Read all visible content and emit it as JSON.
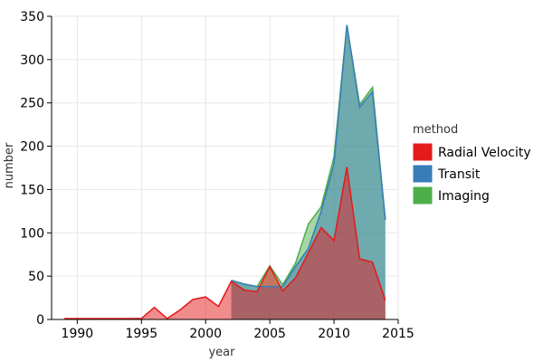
{
  "chart_data": {
    "type": "area",
    "title": "",
    "xlabel": "year",
    "ylabel": "number",
    "xlim": [
      1988,
      2015
    ],
    "ylim": [
      0,
      350
    ],
    "xticks": [
      1990,
      1995,
      2000,
      2005,
      2010,
      2015
    ],
    "yticks": [
      0,
      50,
      100,
      150,
      200,
      250,
      300,
      350
    ],
    "grid": true,
    "legend": {
      "title": "method",
      "position": "right"
    },
    "series": [
      {
        "name": "Radial Velocity",
        "color": "#e41a1c",
        "x": [
          1989,
          1990,
          1991,
          1992,
          1993,
          1994,
          1995,
          1996,
          1997,
          1998,
          1999,
          2000,
          2001,
          2002,
          2003,
          2004,
          2005,
          2006,
          2007,
          2008,
          2009,
          2010,
          2011,
          2012,
          2013,
          2014
        ],
        "y": [
          1,
          1,
          1,
          1,
          1,
          1,
          1,
          14,
          1,
          11,
          23,
          26,
          15,
          44,
          34,
          32,
          61,
          33,
          48,
          77,
          106,
          91,
          176,
          70,
          66,
          22
        ]
      },
      {
        "name": "Transit",
        "color": "#377eb8",
        "x": [
          2002,
          2003,
          2004,
          2005,
          2006,
          2007,
          2008,
          2009,
          2010,
          2011,
          2012,
          2013,
          2014
        ],
        "y": [
          45,
          41,
          38,
          38,
          38,
          61,
          82,
          125,
          180,
          340,
          245,
          263,
          115
        ]
      },
      {
        "name": "Imaging",
        "color": "#4daf4a",
        "x": [
          2002,
          2003,
          2004,
          2005,
          2006,
          2007,
          2008,
          2009,
          2010,
          2011,
          2012,
          2013,
          2014
        ],
        "y": [
          45,
          41,
          38,
          62,
          40,
          65,
          110,
          130,
          188,
          340,
          248,
          268,
          115
        ]
      }
    ]
  }
}
